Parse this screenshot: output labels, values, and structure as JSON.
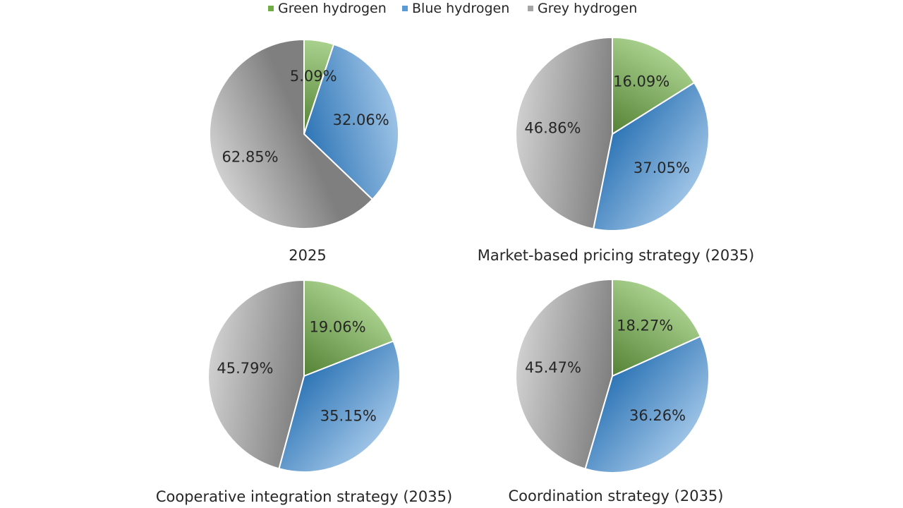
{
  "legend": {
    "items": [
      {
        "label": "Green hydrogen",
        "color": "#70ad47"
      },
      {
        "label": "Blue hydrogen",
        "color": "#5b9bd5"
      },
      {
        "label": "Grey hydrogen",
        "color": "#a5a5a5"
      }
    ]
  },
  "chart_data": [
    {
      "type": "pie",
      "title": "2025",
      "categories": [
        "Green hydrogen",
        "Blue hydrogen",
        "Grey hydrogen"
      ],
      "values": [
        5.09,
        32.06,
        62.85
      ],
      "labels": [
        "5.09%",
        "32.06%",
        "62.85%"
      ],
      "legend_position": "top"
    },
    {
      "type": "pie",
      "title": "Market-based pricing strategy (2035)",
      "categories": [
        "Green hydrogen",
        "Blue hydrogen",
        "Grey hydrogen"
      ],
      "values": [
        16.09,
        37.05,
        46.86
      ],
      "labels": [
        "16.09%",
        "37.05%",
        "46.86%"
      ],
      "legend_position": "top"
    },
    {
      "type": "pie",
      "title": "Cooperative integration strategy (2035)",
      "categories": [
        "Green hydrogen",
        "Blue hydrogen",
        "Grey hydrogen"
      ],
      "values": [
        19.06,
        35.15,
        45.79
      ],
      "labels": [
        "19.06%",
        "35.15%",
        "45.79%"
      ],
      "legend_position": "top"
    },
    {
      "type": "pie",
      "title": "Coordination strategy (2035)",
      "categories": [
        "Green hydrogen",
        "Blue hydrogen",
        "Grey hydrogen"
      ],
      "values": [
        18.27,
        36.26,
        45.47
      ],
      "labels": [
        "18.27%",
        "36.26%",
        "45.47%"
      ],
      "legend_position": "top"
    }
  ]
}
